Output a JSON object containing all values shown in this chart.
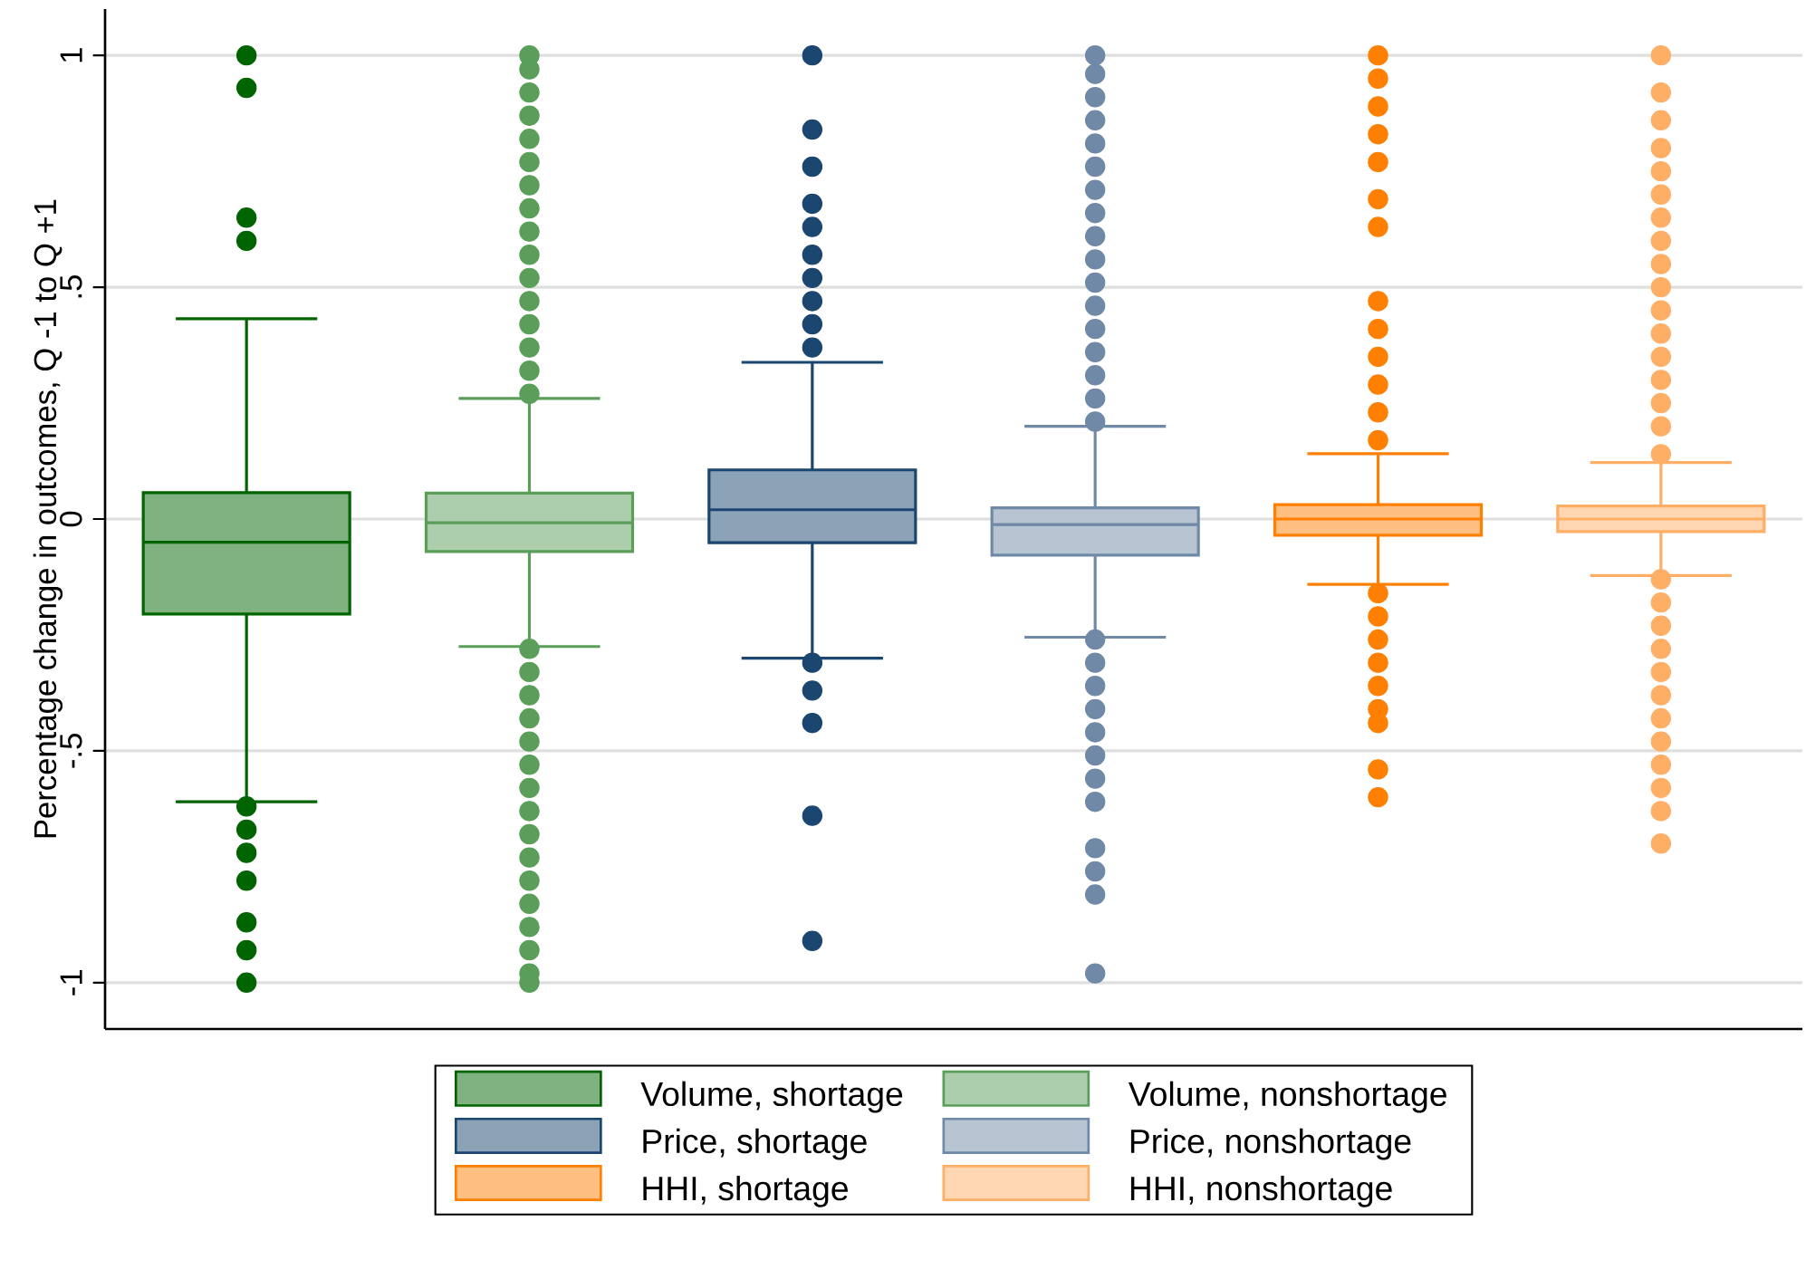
{
  "chart_data": {
    "type": "box",
    "ylabel": "Percentage change in outcomes, Q -1 to Q +1",
    "categories": [
      null,
      null,
      null,
      null,
      null,
      null
    ],
    "ylim": [
      -1.1,
      1.1
    ],
    "yticks": [
      {
        "value": -1,
        "label": "-1"
      },
      {
        "value": -0.5,
        "label": "-.5"
      },
      {
        "value": 0,
        "label": "0"
      },
      {
        "value": 0.5,
        "label": ".5"
      },
      {
        "value": 1,
        "label": "1"
      }
    ],
    "grid": "y",
    "legend": "bottom",
    "marker": "circle",
    "series": [
      {
        "name": "Volume, shortage",
        "color": "#006400",
        "boxes": [
          {
            "low": -0.61,
            "q1": -0.205,
            "median": -0.05,
            "q3": 0.057,
            "high": 0.432,
            "outliers": [
              1.0,
              0.93,
              0.65,
              0.6,
              -0.62,
              -0.67,
              -0.72,
              -0.78,
              -0.87,
              -0.93,
              -1.0
            ]
          },
          null,
          null,
          null,
          null,
          null
        ]
      },
      {
        "name": "Volume, nonshortage",
        "color": "#5a9e5a",
        "boxes": [
          null,
          {
            "low": -0.275,
            "q1": -0.07,
            "median": -0.008,
            "q3": 0.056,
            "high": 0.26,
            "outliers": [
              0.27,
              0.32,
              0.37,
              0.42,
              0.47,
              0.52,
              0.57,
              0.62,
              0.67,
              0.72,
              0.77,
              0.82,
              0.87,
              0.92,
              0.97,
              1.0,
              -0.28,
              -0.33,
              -0.38,
              -0.43,
              -0.48,
              -0.53,
              -0.58,
              -0.63,
              -0.68,
              -0.73,
              -0.78,
              -0.83,
              -0.88,
              -0.93,
              -0.98,
              -1.0
            ]
          },
          null,
          null,
          null,
          null
        ]
      },
      {
        "name": "Price, shortage",
        "color": "#1a4670",
        "boxes": [
          null,
          null,
          {
            "low": -0.3,
            "q1": -0.051,
            "median": 0.02,
            "q3": 0.106,
            "high": 0.338,
            "outliers": [
              1.0,
              0.84,
              0.76,
              0.68,
              0.63,
              0.57,
              0.52,
              0.47,
              0.42,
              0.37,
              -0.31,
              -0.37,
              -0.44,
              -0.64,
              -0.91
            ]
          },
          null,
          null,
          null
        ]
      },
      {
        "name": "Price, nonshortage",
        "color": "#6f89a6",
        "boxes": [
          null,
          null,
          null,
          {
            "low": -0.255,
            "q1": -0.078,
            "median": -0.012,
            "q3": 0.024,
            "high": 0.2,
            "outliers": [
              0.21,
              0.26,
              0.31,
              0.36,
              0.41,
              0.46,
              0.51,
              0.56,
              0.61,
              0.66,
              0.71,
              0.76,
              0.81,
              0.86,
              0.91,
              0.96,
              1.0,
              -0.26,
              -0.31,
              -0.36,
              -0.41,
              -0.46,
              -0.51,
              -0.56,
              -0.61,
              -0.71,
              -0.76,
              -0.81,
              -0.98
            ]
          },
          null,
          null
        ]
      },
      {
        "name": "HHI, shortage",
        "color": "#ff7f00",
        "boxes": [
          null,
          null,
          null,
          null,
          {
            "low": -0.141,
            "q1": -0.035,
            "median": 0.0,
            "q3": 0.031,
            "high": 0.141,
            "outliers": [
              1.0,
              0.95,
              0.89,
              0.83,
              0.77,
              0.69,
              0.63,
              0.47,
              0.41,
              0.35,
              0.29,
              0.23,
              0.17,
              -0.16,
              -0.21,
              -0.26,
              -0.31,
              -0.36,
              -0.41,
              -0.44,
              -0.54,
              -0.6
            ]
          },
          null
        ]
      },
      {
        "name": "HHI, nonshortage",
        "color": "#ffae66",
        "boxes": [
          null,
          null,
          null,
          null,
          null,
          {
            "low": -0.122,
            "q1": -0.027,
            "median": 0.0,
            "q3": 0.028,
            "high": 0.122,
            "outliers": [
              1.0,
              0.92,
              0.86,
              0.8,
              0.75,
              0.7,
              0.65,
              0.6,
              0.55,
              0.5,
              0.45,
              0.4,
              0.35,
              0.3,
              0.25,
              0.2,
              0.14,
              -0.13,
              -0.18,
              -0.23,
              -0.28,
              -0.33,
              -0.38,
              -0.43,
              -0.48,
              -0.53,
              -0.58,
              -0.63,
              -0.7
            ]
          }
        ]
      }
    ]
  }
}
